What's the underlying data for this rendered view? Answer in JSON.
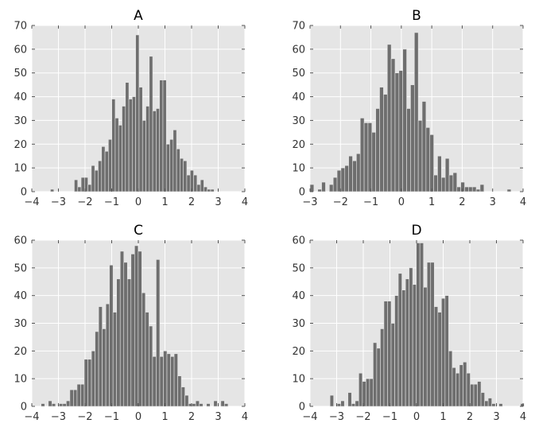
{
  "chart_data": [
    {
      "type": "bar",
      "title": "A",
      "xlim": [
        -4,
        4
      ],
      "ylim": [
        0,
        70
      ],
      "xticks": [
        -4,
        -3,
        -2,
        -1,
        0,
        1,
        2,
        3,
        4
      ],
      "yticks": [
        0,
        10,
        20,
        30,
        40,
        50,
        60,
        70
      ],
      "grid": true,
      "bin_start": -3.3,
      "bin_width": 0.128,
      "values": [
        1,
        0,
        0,
        0,
        0,
        0,
        0,
        5,
        2,
        6,
        6,
        3,
        11,
        9,
        13,
        19,
        17,
        22,
        39,
        31,
        28,
        36,
        46,
        39,
        40,
        66,
        44,
        30,
        36,
        57,
        34,
        35,
        47,
        47,
        20,
        22,
        26,
        18,
        14,
        13,
        7,
        9,
        7,
        3,
        5,
        2,
        1,
        1
      ]
    },
    {
      "type": "bar",
      "title": "B",
      "xlim": [
        -3,
        4
      ],
      "ylim": [
        0,
        70
      ],
      "xticks": [
        -3,
        -2,
        -1,
        0,
        1,
        2,
        3,
        4
      ],
      "yticks": [
        0,
        10,
        20,
        30,
        40,
        50,
        60,
        70
      ],
      "grid": true,
      "bin_start": -3.0,
      "bin_width": 0.127,
      "values": [
        3,
        0,
        1,
        4,
        0,
        3,
        6,
        9,
        10,
        11,
        15,
        13,
        16,
        31,
        29,
        29,
        25,
        35,
        44,
        41,
        62,
        56,
        50,
        51,
        60,
        35,
        45,
        67,
        30,
        38,
        27,
        24,
        7,
        15,
        6,
        14,
        7,
        8,
        2,
        4,
        2,
        2,
        2,
        1,
        3,
        0,
        0,
        0,
        0,
        0,
        0,
        1
      ]
    },
    {
      "type": "bar",
      "title": "C",
      "xlim": [
        -4,
        4
      ],
      "ylim": [
        0,
        60
      ],
      "xticks": [
        -4,
        -3,
        -2,
        -1,
        0,
        1,
        2,
        3,
        4
      ],
      "yticks": [
        0,
        10,
        20,
        30,
        40,
        50,
        60
      ],
      "grid": true,
      "bin_start": -3.65,
      "bin_width": 0.135,
      "values": [
        1,
        0,
        2,
        1,
        0,
        1,
        1,
        2,
        6,
        6,
        8,
        8,
        17,
        17,
        20,
        27,
        36,
        28,
        37,
        51,
        34,
        46,
        56,
        52,
        46,
        55,
        58,
        56,
        41,
        34,
        29,
        18,
        53,
        18,
        20,
        19,
        18,
        19,
        11,
        7,
        4,
        1,
        1,
        2,
        1,
        0,
        1,
        0,
        2,
        0,
        2,
        1
      ]
    },
    {
      "type": "bar",
      "title": "D",
      "xlim": [
        -4,
        4
      ],
      "ylim": [
        0,
        60
      ],
      "xticks": [
        -4,
        -3,
        -2,
        -1,
        0,
        1,
        2,
        3,
        4
      ],
      "yticks": [
        0,
        10,
        20,
        30,
        40,
        50,
        60
      ],
      "grid": true,
      "bin_start": -3.25,
      "bin_width": 0.135,
      "values": [
        4,
        0,
        1,
        2,
        0,
        5,
        1,
        2,
        12,
        9,
        10,
        10,
        23,
        21,
        28,
        38,
        38,
        30,
        40,
        48,
        42,
        46,
        50,
        44,
        59,
        59,
        43,
        52,
        52,
        36,
        34,
        39,
        40,
        20,
        14,
        12,
        15,
        16,
        12,
        8,
        8,
        9,
        5,
        2,
        3,
        1,
        0,
        1,
        0,
        0,
        0,
        0,
        0,
        1
      ]
    }
  ]
}
